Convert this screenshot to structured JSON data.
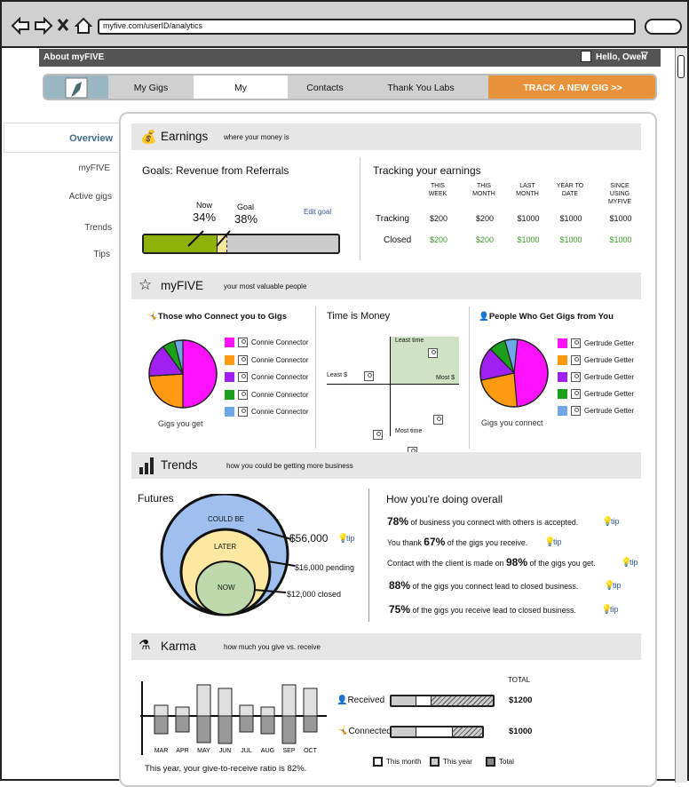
{
  "browser": {
    "url": "myfive.com/userID/analytics"
  },
  "header": {
    "about": "About myFIVE",
    "greeting": "Hello, Owen"
  },
  "nav": {
    "tabs": [
      "My Gigs",
      "My",
      "Contacts",
      "Thank You Labs"
    ],
    "track_button": "TRACK A NEW GIG >>"
  },
  "sidebar": {
    "items": [
      "Overview",
      "myFIVE",
      "Active gigs",
      "Trends",
      "Tips"
    ]
  },
  "earnings": {
    "title": "Earnings",
    "subtitle": "where your money is",
    "goals_title": "Goals: Revenue from Referrals",
    "now_label": "Now",
    "now_value": "34%",
    "goal_label": "Goal",
    "goal_value": "38%",
    "now_fraction": 0.34,
    "goal_fraction": 0.38,
    "edit_goal": "Edit goal",
    "tracking_title": "Tracking your earnings",
    "columns": [
      "THIS WEEK",
      "THIS MONTH",
      "LAST MONTH",
      "YEAR TO DATE",
      "SINCE USING MYFIVE"
    ],
    "rows": [
      {
        "label": "Tracking",
        "values": [
          "$200",
          "$200",
          "$1000",
          "$1000",
          "$1000"
        ]
      },
      {
        "label": "Closed",
        "values": [
          "$200",
          "$200",
          "$1000",
          "$1000",
          "$1000"
        ]
      }
    ]
  },
  "myfive": {
    "title": "myFIVE",
    "subtitle": "your most valuable people",
    "connect_title": "Those who Connect you to Gigs",
    "connect_caption": "Gigs you get",
    "connect_legend": [
      "Connie Connector",
      "Connie Connector",
      "Connie Connector",
      "Connie Connector",
      "Connie Connector"
    ],
    "time_title": "Time is Money",
    "quad_labels": {
      "top": "Least time",
      "bottom": "Most time",
      "left": "Least $",
      "right": "Most $"
    },
    "get_title": "People Who Get Gigs from You",
    "get_caption": "Gigs you connect",
    "get_legend": [
      "Gertrude Getter",
      "Gertrude Getter",
      "Gertrude Getter",
      "Gertrude Getter",
      "Gertrude Getter"
    ],
    "colors": [
      "#ff10ff",
      "#ff9a10",
      "#a020f0",
      "#1aa01a",
      "#6fa8e8"
    ]
  },
  "trends": {
    "title": "Trends",
    "subtitle": "how you could be getting more business",
    "futures_title": "Futures",
    "could_be": "COULD BE",
    "later": "LATER",
    "now": "NOW",
    "v_could": "$56,000",
    "v_later": "$16,000 pending",
    "v_now": "$12,000 closed",
    "tip": "tip",
    "overall_title": "How you're doing overall",
    "stats": [
      {
        "pre": "",
        "pct": "78%",
        "post": " of business you connect with others is accepted."
      },
      {
        "pre": "You thank ",
        "pct": "67%",
        "post": " of the gigs you receive."
      },
      {
        "pre": "Contact with the client is made on ",
        "pct": "98%",
        "post": " of the gigs you get."
      },
      {
        "pre": "",
        "pct": "88%",
        "post": " of the gigs you connect lead to closed business."
      },
      {
        "pre": "",
        "pct": "75%",
        "post": " of the gigs you receive lead to closed business."
      }
    ]
  },
  "karma": {
    "title": "Karma",
    "subtitle": "how much you give vs. receive",
    "months": [
      "MAR",
      "APR",
      "MAY",
      "JUN",
      "JUL",
      "AUG",
      "SEP",
      "OCT"
    ],
    "ratio_text": "This year, your give-to-receive ratio is 82%.",
    "total_label": "TOTAL",
    "received_label": "Received",
    "received_total": "$1200",
    "connected_label": "Connected",
    "connected_total": "$1000",
    "legend": [
      "This month",
      "This year",
      "Total"
    ]
  }
}
